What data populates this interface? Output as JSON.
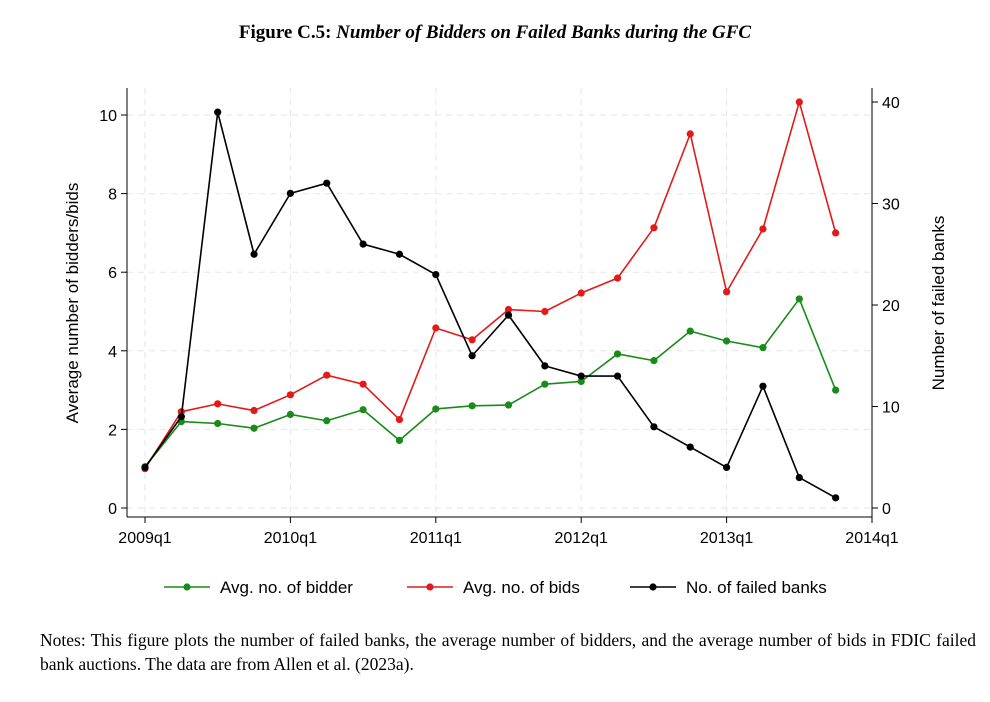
{
  "figure": {
    "label": "Figure C.5:",
    "title": "Number of Bidders on Failed Banks during the GFC"
  },
  "notes": "Notes: This figure plots the number of failed banks, the average number of bidders, and the average number of bids in FDIC failed bank auctions. The data are from Allen et al. (2023a).",
  "chart_data": {
    "type": "line",
    "x": [
      0,
      1,
      2,
      3,
      4,
      5,
      6,
      7,
      8,
      9,
      10,
      11,
      12,
      13,
      14,
      15,
      16,
      17,
      18,
      19
    ],
    "xticks": [
      {
        "pos": 0,
        "label": "2009q1"
      },
      {
        "pos": 4,
        "label": "2010q1"
      },
      {
        "pos": 8,
        "label": "2011q1"
      },
      {
        "pos": 12,
        "label": "2012q1"
      },
      {
        "pos": 16,
        "label": "2013q1"
      },
      {
        "pos": 20,
        "label": "2014q1"
      }
    ],
    "xlim": [
      0,
      20
    ],
    "ylabel": "Average number of bidders/bids",
    "y2label": "Number of failed banks",
    "ylim": [
      0,
      10.2
    ],
    "y2lim": [
      0,
      40
    ],
    "yticks": [
      0,
      2,
      4,
      6,
      8,
      10
    ],
    "y2ticks": [
      0,
      10,
      20,
      30,
      40
    ],
    "grid": true,
    "legend_position": "bottom",
    "series": [
      {
        "name": "Avg. no. of bidder",
        "color": "#1a8a1a",
        "axis": "left",
        "values": [
          1.05,
          2.2,
          2.15,
          2.03,
          2.38,
          2.22,
          2.5,
          1.72,
          2.52,
          2.6,
          2.62,
          3.15,
          3.22,
          3.92,
          3.75,
          4.5,
          4.25,
          4.08,
          5.32,
          3.0
        ]
      },
      {
        "name": "Avg. no. of bids",
        "color": "#e31a1a",
        "axis": "left",
        "values": [
          1.0,
          2.45,
          2.65,
          2.48,
          2.88,
          3.38,
          3.15,
          2.25,
          4.58,
          4.28,
          5.05,
          5.0,
          5.47,
          5.85,
          7.13,
          9.52,
          5.5,
          7.1,
          10.33,
          7.0
        ]
      },
      {
        "name": "No. of failed banks",
        "color": "#000000",
        "axis": "right",
        "values": [
          4,
          9,
          39,
          25,
          31,
          32,
          26,
          25,
          23,
          15,
          19,
          14,
          13,
          13,
          8,
          6,
          4,
          12,
          3,
          1
        ]
      }
    ]
  }
}
